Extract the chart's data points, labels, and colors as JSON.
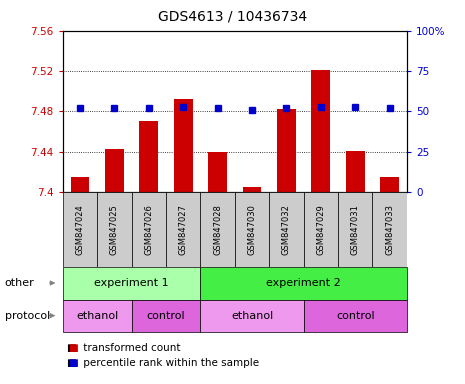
{
  "title": "GDS4613 / 10436734",
  "samples": [
    "GSM847024",
    "GSM847025",
    "GSM847026",
    "GSM847027",
    "GSM847028",
    "GSM847030",
    "GSM847032",
    "GSM847029",
    "GSM847031",
    "GSM847033"
  ],
  "bar_values": [
    7.415,
    7.443,
    7.47,
    7.492,
    7.44,
    7.405,
    7.482,
    7.521,
    7.441,
    7.415
  ],
  "dot_values": [
    52,
    52,
    52,
    53,
    52,
    51,
    52,
    53,
    53,
    52
  ],
  "ylim_left": [
    7.4,
    7.56
  ],
  "ylim_right": [
    0,
    100
  ],
  "yticks_left": [
    7.4,
    7.44,
    7.48,
    7.52,
    7.56
  ],
  "ytick_labels_left": [
    "7.4",
    "7.44",
    "7.48",
    "7.52",
    "7.56"
  ],
  "yticks_right": [
    0,
    25,
    50,
    75,
    100
  ],
  "ytick_labels_right": [
    "0",
    "25",
    "50",
    "75",
    "100%"
  ],
  "grid_yticks": [
    7.44,
    7.48,
    7.52
  ],
  "bar_color": "#cc0000",
  "dot_color": "#0000cc",
  "bar_bottom": 7.4,
  "other_groups": [
    {
      "label": "experiment 1",
      "start": 0,
      "end": 4,
      "color": "#aaffaa"
    },
    {
      "label": "experiment 2",
      "start": 4,
      "end": 10,
      "color": "#44ee44"
    }
  ],
  "protocol_groups": [
    {
      "label": "ethanol",
      "start": 0,
      "end": 2,
      "color": "#ee99ee"
    },
    {
      "label": "control",
      "start": 2,
      "end": 4,
      "color": "#dd66dd"
    },
    {
      "label": "ethanol",
      "start": 4,
      "end": 7,
      "color": "#ee99ee"
    },
    {
      "label": "control",
      "start": 7,
      "end": 10,
      "color": "#dd66dd"
    }
  ],
  "legend_items": [
    {
      "label": "transformed count",
      "color": "#cc0000"
    },
    {
      "label": "percentile rank within the sample",
      "color": "#0000cc"
    }
  ],
  "row_label_other": "other",
  "row_label_protocol": "protocol",
  "sample_box_color": "#cccccc",
  "background_color": "#ffffff"
}
